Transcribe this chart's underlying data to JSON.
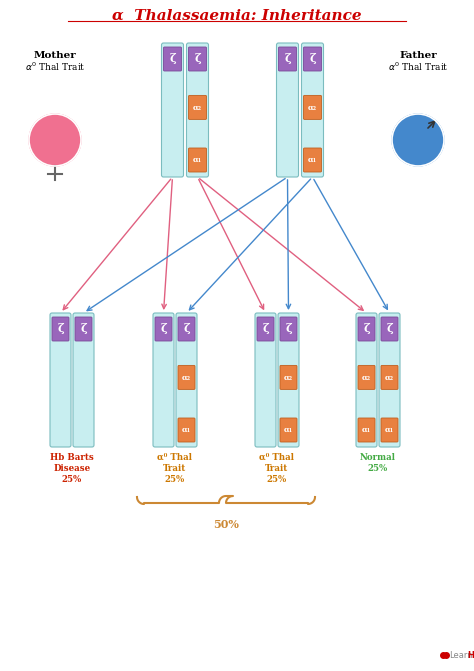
{
  "title": "α  Thalassaemia: Inheritance",
  "title_color": "#cc0000",
  "background_color": "#ffffff",
  "chrom_body_color": "#c8eef0",
  "chrom_border_color": "#7bbcbf",
  "zeta_color": "#9966bb",
  "zeta_border": "#7a4a99",
  "alpha_color": "#e88040",
  "alpha_border": "#c06020",
  "zeta_label": "ζ",
  "alpha2_label": "α₂",
  "alpha1_label": "α₁",
  "female_color": "#f07090",
  "male_color": "#4488cc",
  "arrow_pink": "#e06080",
  "arrow_blue": "#4488cc",
  "outcome_colors": [
    "#cc2200",
    "#cc7700",
    "#cc7700",
    "#44aa44"
  ],
  "outcome_labels": [
    "Hb Barts\nDisease\n25%",
    "α⁰ Thal\nTrait\n25%",
    "α⁰ Thal\nTrait\n25%",
    "Normal\n25%"
  ],
  "brace_color": "#cc8833",
  "brace_label": "50%"
}
